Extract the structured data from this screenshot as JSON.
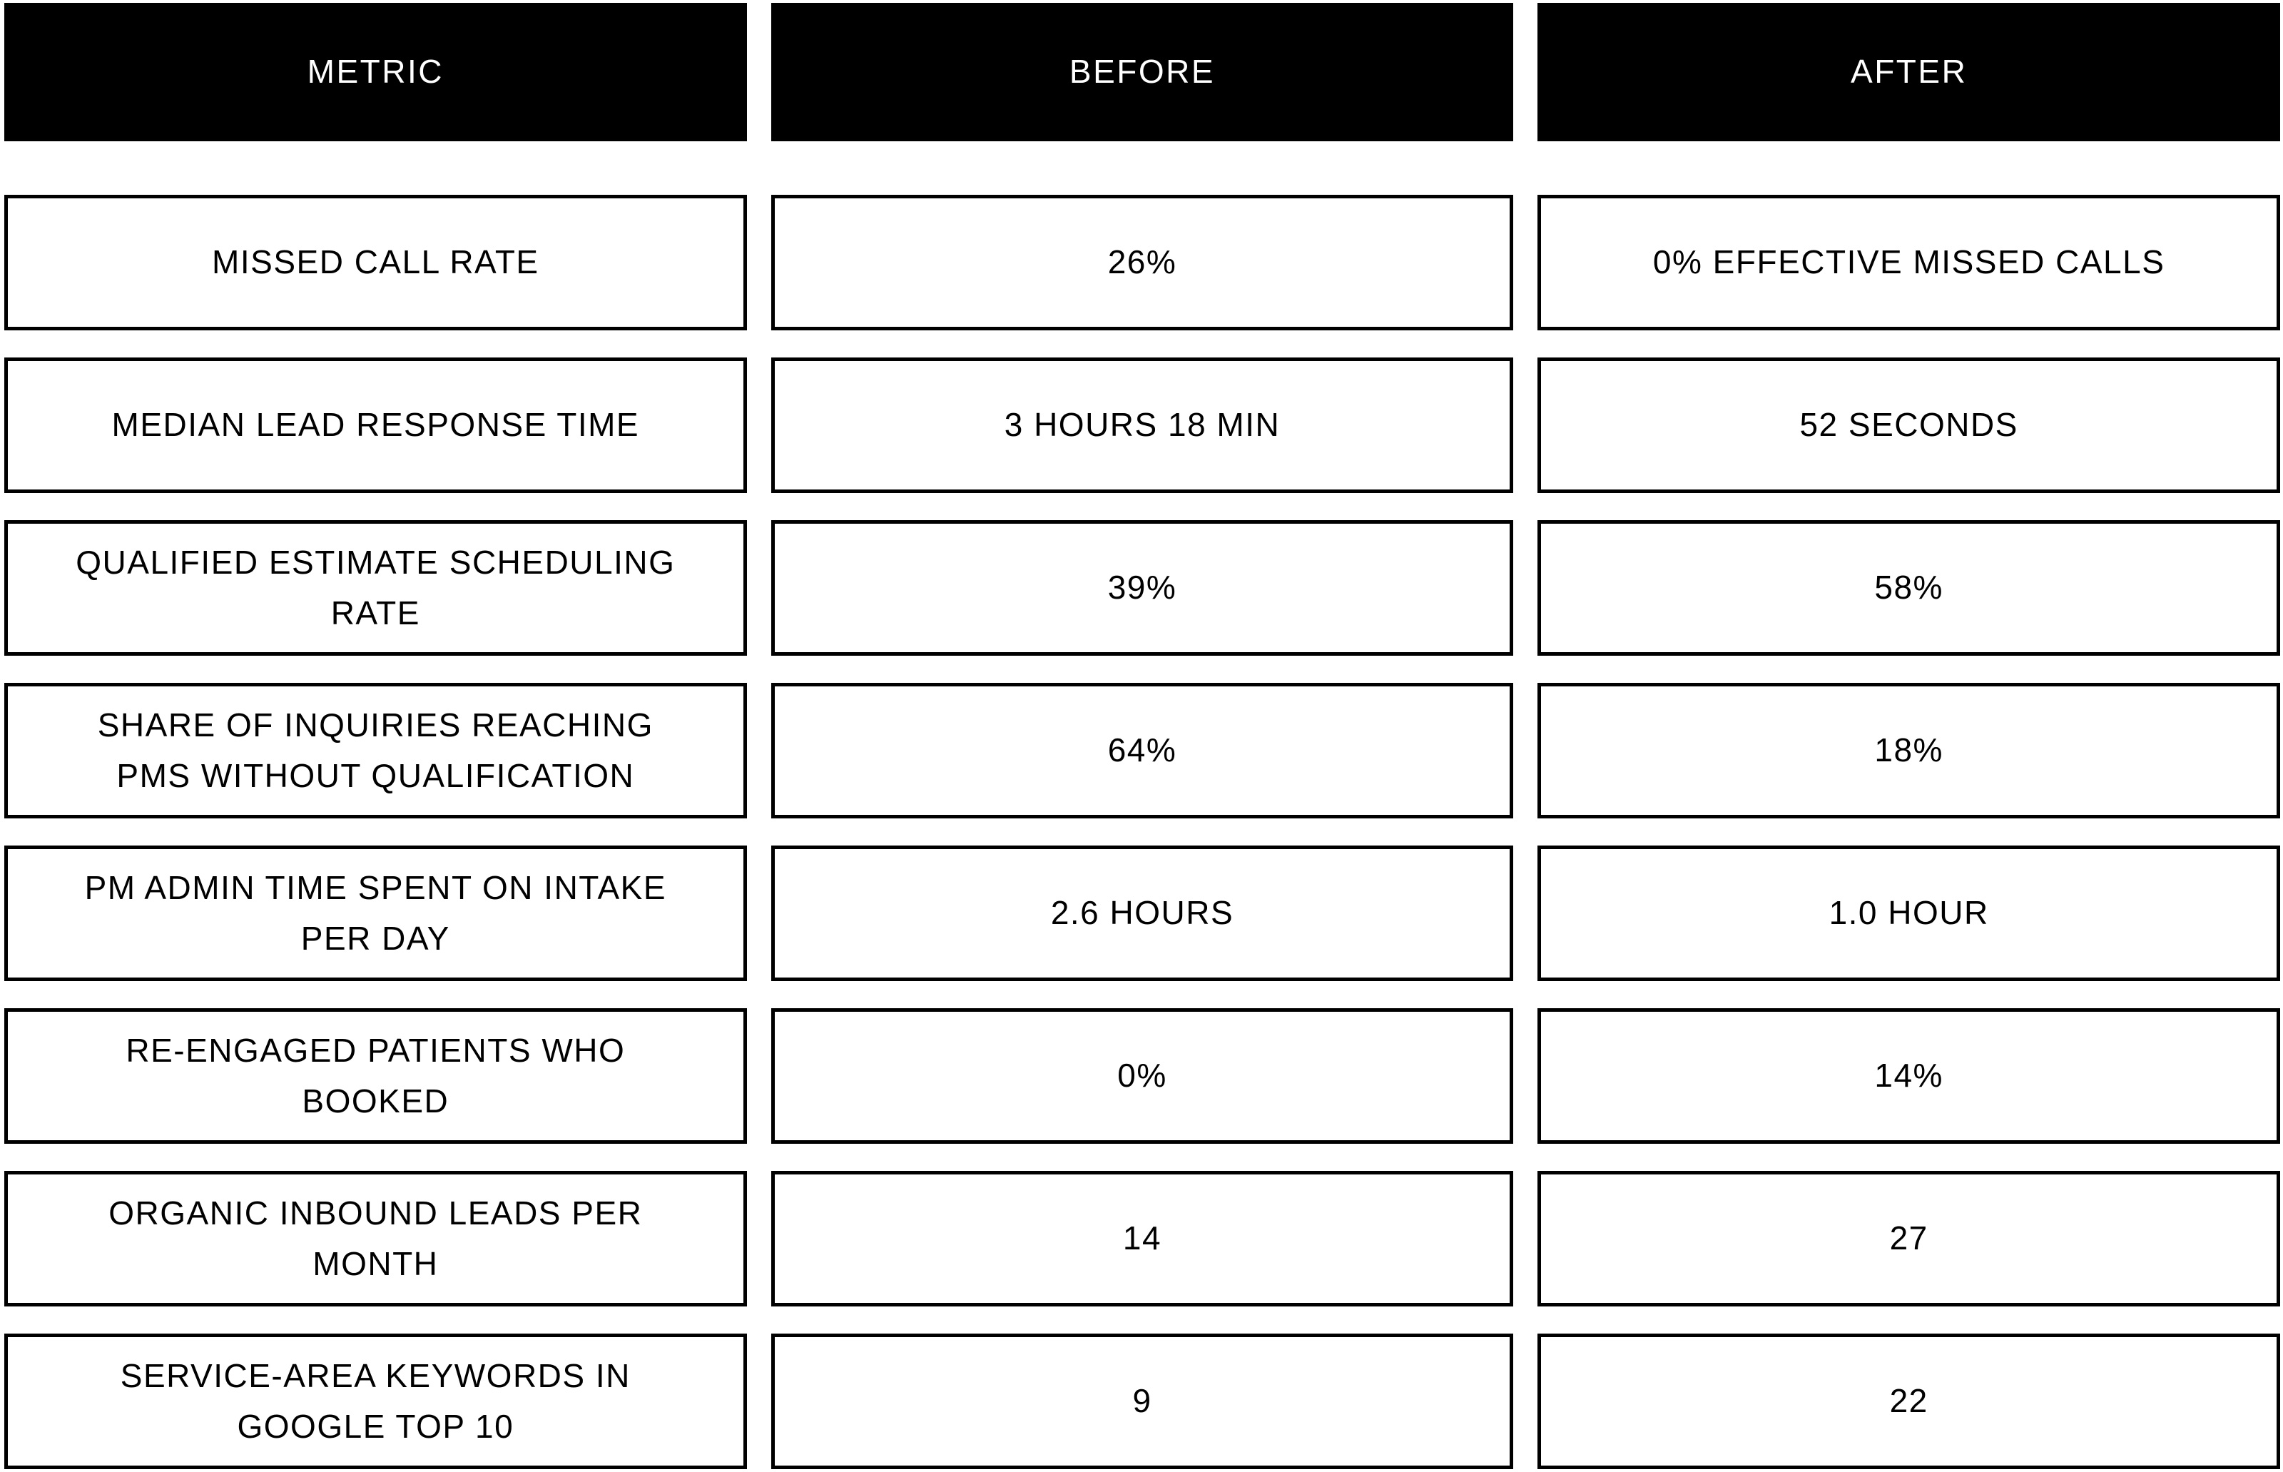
{
  "table": {
    "headers": {
      "metric": "METRIC",
      "before": "BEFORE",
      "after": "AFTER"
    },
    "rows": [
      {
        "metric": "MISSED CALL RATE",
        "before": "26%",
        "after": "0% EFFECTIVE MISSED CALLS"
      },
      {
        "metric": "MEDIAN LEAD RESPONSE TIME",
        "before": "3 HOURS 18 MIN",
        "after": "52 SECONDS"
      },
      {
        "metric": "QUALIFIED ESTIMATE SCHEDULING RATE",
        "before": "39%",
        "after": "58%"
      },
      {
        "metric": "SHARE OF INQUIRIES REACHING PMS WITHOUT QUALIFICATION",
        "before": "64%",
        "after": "18%"
      },
      {
        "metric": "PM ADMIN TIME SPENT ON INTAKE PER DAY",
        "before": "2.6 HOURS",
        "after": "1.0 HOUR"
      },
      {
        "metric": "RE-ENGAGED PATIENTS WHO BOOKED",
        "before": "0%",
        "after": "14%"
      },
      {
        "metric": "ORGANIC INBOUND LEADS PER MONTH",
        "before": "14",
        "after": "27"
      },
      {
        "metric": "SERVICE-AREA KEYWORDS IN GOOGLE TOP 10",
        "before": "9",
        "after": "22"
      }
    ]
  },
  "colors": {
    "header_bg": "#000000",
    "header_text": "#ffffff",
    "cell_bg": "#ffffff",
    "cell_text": "#000000",
    "border": "#000000"
  },
  "chart_data": {
    "type": "table",
    "columns": [
      "METRIC",
      "BEFORE",
      "AFTER"
    ],
    "rows": [
      [
        "MISSED CALL RATE",
        "26%",
        "0% EFFECTIVE MISSED CALLS"
      ],
      [
        "MEDIAN LEAD RESPONSE TIME",
        "3 HOURS 18 MIN",
        "52 SECONDS"
      ],
      [
        "QUALIFIED ESTIMATE SCHEDULING RATE",
        "39%",
        "58%"
      ],
      [
        "SHARE OF INQUIRIES REACHING PMS WITHOUT QUALIFICATION",
        "64%",
        "18%"
      ],
      [
        "PM ADMIN TIME SPENT ON INTAKE PER DAY",
        "2.6 HOURS",
        "1.0 HOUR"
      ],
      [
        "RE-ENGAGED PATIENTS WHO BOOKED",
        "0%",
        "14%"
      ],
      [
        "ORGANIC INBOUND LEADS PER MONTH",
        "14",
        "27"
      ],
      [
        "SERVICE-AREA KEYWORDS IN GOOGLE TOP 10",
        "9",
        "22"
      ]
    ],
    "layout": {
      "header_style": "inverted-black",
      "grid": "separated-boxes",
      "legend_position": "none"
    }
  }
}
